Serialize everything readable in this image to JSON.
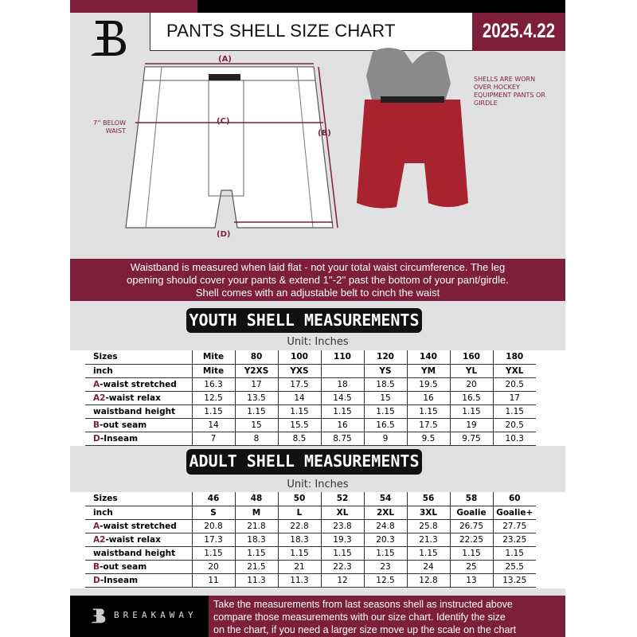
{
  "header": {
    "title": "PANTS SHELL SIZE CHART",
    "date": "2025.4.22",
    "logo": "B"
  },
  "diagram": {
    "label_a": "(A)",
    "label_b": "(B)",
    "label_c": "(C)",
    "label_d": "(D)",
    "below_waist": "7'' BELOW WAIST",
    "note": "SHELLS ARE WORN OVER HOCKEY EQUIPMENT PANTS OR GIRDLE"
  },
  "banner": {
    "lines": [
      "Waistband is measured when laid flat - not your total waist circumference. The leg",
      "opening should cover your pants & extend 1''-2'' past the bottom of your pant/girdle.",
      "Shell comes with an adjustable belt to cinch the waist"
    ]
  },
  "youth": {
    "title": "YOUTH SHELL MEASUREMENTS",
    "unit": "Unit: Inches",
    "rows": [
      {
        "prefix": "",
        "label": "Sizes",
        "values": [
          "Mite",
          "80",
          "100",
          "110",
          "120",
          "140",
          "160",
          "180"
        ]
      },
      {
        "prefix": "",
        "label": "inch",
        "values": [
          "Mite",
          "Y2XS",
          "YXS",
          "",
          "YS",
          "YM",
          "YL",
          "YXL"
        ]
      },
      {
        "prefix": "A",
        "label": "-waist stretched",
        "values": [
          "16.3",
          "17",
          "17.5",
          "18",
          "18.5",
          "19.5",
          "20",
          "20.5"
        ]
      },
      {
        "prefix": "A2",
        "label": "-waist relax",
        "values": [
          "12.5",
          "13.5",
          "14",
          "14.5",
          "15",
          "16",
          "16.5",
          "17"
        ]
      },
      {
        "prefix": "",
        "label": "waistband height",
        "values": [
          "1.15",
          "1.15",
          "1.15",
          "1.15",
          "1.15",
          "1.15",
          "1.15",
          "1.15"
        ]
      },
      {
        "prefix": "B",
        "label": "-out seam",
        "values": [
          "14",
          "15",
          "15.5",
          "16",
          "16.5",
          "17.5",
          "19",
          "20.5"
        ]
      },
      {
        "prefix": "D",
        "label": "-Inseam",
        "values": [
          "7",
          "8",
          "8.5",
          "8.75",
          "9",
          "9.5",
          "9.75",
          "10.3"
        ]
      }
    ]
  },
  "adult": {
    "title": "ADULT SHELL MEASUREMENTS",
    "unit": "Unit: Inches",
    "rows": [
      {
        "prefix": "",
        "label": "Sizes",
        "values": [
          "46",
          "48",
          "50",
          "52",
          "54",
          "56",
          "58",
          "60"
        ]
      },
      {
        "prefix": "",
        "label": "inch",
        "values": [
          "S",
          "M",
          "L",
          "XL",
          "2XL",
          "3XL",
          "Goalie",
          "Goalie+"
        ]
      },
      {
        "prefix": "A",
        "label": "-waist stretched",
        "values": [
          "20.8",
          "21.8",
          "22.8",
          "23.8",
          "24.8",
          "25.8",
          "26.75",
          "27.75"
        ]
      },
      {
        "prefix": "A2",
        "label": "-waist relax",
        "values": [
          "17.3",
          "18.3",
          "18.3",
          "19.3",
          "20.3",
          "21.3",
          "22.25",
          "23.25"
        ]
      },
      {
        "prefix": "",
        "label": "waistband height",
        "values": [
          "1.15",
          "1.15",
          "1.15",
          "1.15",
          "1.15",
          "1.15",
          "1.15",
          "1.15"
        ]
      },
      {
        "prefix": "B",
        "label": "-out seam",
        "values": [
          "20",
          "21.5",
          "21",
          "22.3",
          "23",
          "24",
          "25",
          "25.5"
        ]
      },
      {
        "prefix": "D",
        "label": "-Inseam",
        "values": [
          "11",
          "11.3",
          "11.3",
          "12",
          "12.5",
          "12.8",
          "13",
          "13.25"
        ]
      }
    ]
  },
  "footer": {
    "brand": "BREAKAWAY",
    "lines": [
      "Take the measurements from last seasons shell as instructed above",
      "compare those measurements  with our size chart. Identify the size",
      "on the chart, if you need a larger size move up the scale on the chart"
    ]
  },
  "colors": {
    "brand": "#7d1f3a",
    "background": "#e1e1e3"
  }
}
